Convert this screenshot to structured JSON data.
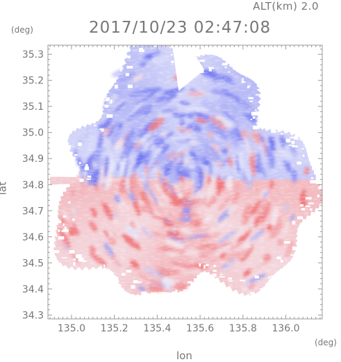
{
  "header": {
    "altitude_label": "ALT(km) 2.0",
    "timestamp": "2017/10/23 02:47:08",
    "y_unit": "(deg)",
    "x_unit": "(deg)"
  },
  "colors": {
    "frame": "#999999",
    "tick_text": "#777777",
    "approaching": "#6f74f0",
    "receding": "#f06c70",
    "zero": "#f4f4fb",
    "background": "#ffffff"
  },
  "chart_data": {
    "type": "heatmap",
    "title": "2017/10/23 02:47:08",
    "subtitle": "ALT(km) 2.0",
    "xlabel": "lon",
    "ylabel": "lat",
    "x_unit": "(deg)",
    "y_unit": "(deg)",
    "xlim": [
      134.89,
      136.17
    ],
    "ylim": [
      34.285,
      35.335
    ],
    "x_ticks": [
      135.0,
      135.2,
      135.4,
      135.6,
      135.8,
      136.0
    ],
    "x_tick_labels": [
      "135.0",
      "135.2",
      "135.4",
      "135.6",
      "135.8",
      "136.0"
    ],
    "y_ticks": [
      34.3,
      34.4,
      34.5,
      34.6,
      34.7,
      34.8,
      34.9,
      35.0,
      35.1,
      35.2,
      35.3
    ],
    "y_tick_labels": [
      "34.3",
      "34.4",
      "34.5",
      "34.6",
      "34.7",
      "34.8",
      "34.9",
      "35.0",
      "35.1",
      "35.2",
      "35.3"
    ],
    "radar_center": {
      "lon": 135.52,
      "lat": 34.82
    },
    "color_scale": {
      "negative": "#6f74f0",
      "zero": "#f4f4fb",
      "positive": "#f06c70"
    },
    "regions": [
      {
        "lon_range": [
          134.89,
          136.17
        ],
        "lat_range": [
          34.82,
          35.33
        ],
        "tendency": "approaching"
      },
      {
        "lon_range": [
          134.89,
          136.17
        ],
        "lat_range": [
          34.29,
          34.82
        ],
        "tendency": "receding"
      }
    ]
  }
}
